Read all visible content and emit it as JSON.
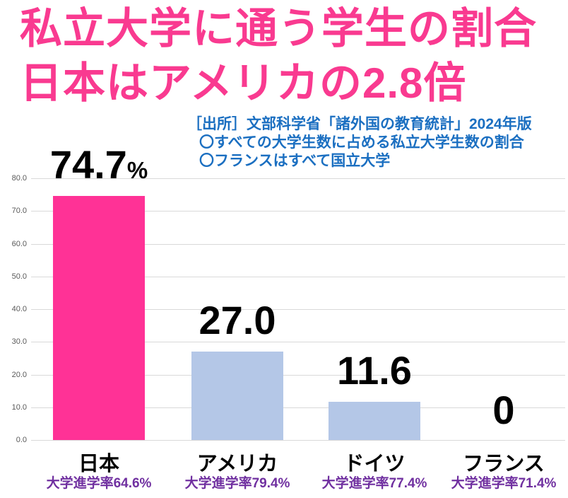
{
  "title": {
    "line1": "私立大学に通う学生の割合",
    "line2": "日本はアメリカの2.8倍"
  },
  "source": {
    "line1": "［出所］文部科学省「諸外国の教育統計」2024年版",
    "line2": "〇すべての大学生数に占める私立大学生数の割合",
    "line3": "〇フランスはすべて国立大学"
  },
  "colors": {
    "title_pink": "#F93A90",
    "source_blue": "#1B6FC1",
    "bar_pink": "#FF3296",
    "bar_blue": "#B4C7E7",
    "sub_purple": "#7030A0",
    "gridline_gray": "#D9D9D9",
    "tick_gray": "#595959"
  },
  "chart_data": {
    "type": "bar",
    "title": "私立大学に通う学生の割合 日本はアメリカの2.8倍",
    "categories": [
      "日本",
      "アメリカ",
      "ドイツ",
      "フランス"
    ],
    "values": [
      74.7,
      27.0,
      11.6,
      0
    ],
    "value_labels": [
      "74.7",
      "27.0",
      "11.6",
      "0"
    ],
    "value_suffixes": [
      "%",
      "",
      "",
      ""
    ],
    "sub_labels": [
      "大学進学率64.6%",
      "大学進学率79.4%",
      "大学進学率77.4%",
      "大学進学率71.4%"
    ],
    "bar_colors": [
      "#FF3296",
      "#B4C7E7",
      "#B4C7E7",
      "#B4C7E7"
    ],
    "xlabel": "",
    "ylabel": "",
    "ylim": [
      0,
      80
    ],
    "ytick_values": [
      80,
      70,
      60,
      50,
      40,
      30,
      20,
      10,
      0
    ],
    "ytick_labels": [
      "80.0",
      "70.0",
      "60.0",
      "50.0",
      "40.0",
      "30.0",
      "20.0",
      "10.0",
      "0.0"
    ],
    "grid": "horizontal",
    "legend": "none"
  }
}
